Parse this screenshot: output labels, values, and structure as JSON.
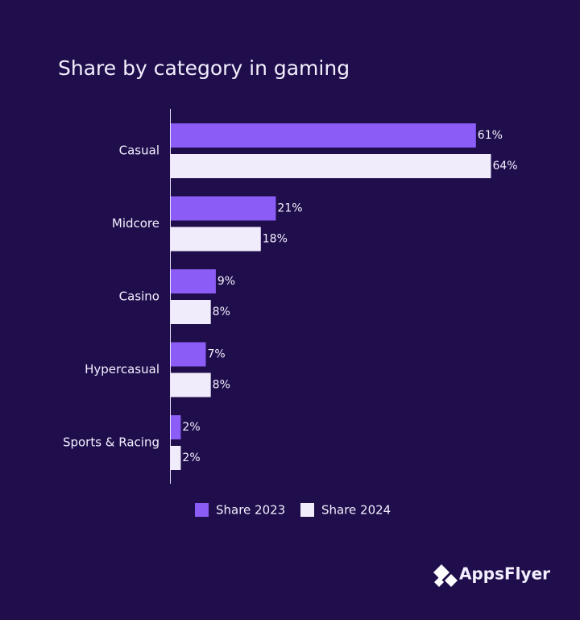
{
  "chart_data": {
    "type": "bar",
    "orientation": "horizontal",
    "title": "Share by category in gaming",
    "categories": [
      "Casual",
      "Midcore",
      "Casino",
      "Hypercasual",
      "Sports & Racing"
    ],
    "series": [
      {
        "name": "Share 2023",
        "color": "#8b5cf6",
        "values": [
          61,
          21,
          9,
          7,
          2
        ],
        "value_labels": [
          "61%",
          "21%",
          "9%",
          "7%",
          "2%"
        ]
      },
      {
        "name": "Share 2024",
        "color": "#f1ecfb",
        "values": [
          64,
          18,
          8,
          8,
          2
        ],
        "value_labels": [
          "64%",
          "18%",
          "8%",
          "8%",
          "2%"
        ]
      }
    ]
  },
  "brand": "AppsFlyer"
}
